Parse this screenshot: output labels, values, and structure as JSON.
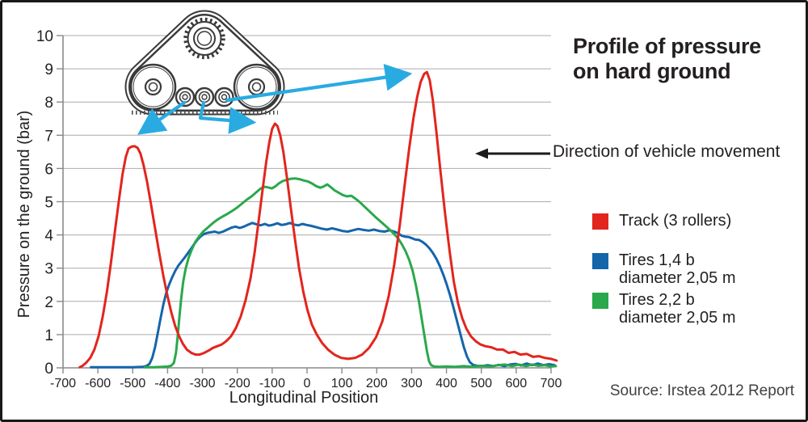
{
  "annotations": {
    "direction_note": "Direction of vehicle movement",
    "source": "Source: Irstea 2012 Report"
  },
  "colors": {
    "track_red": "#e2251d",
    "tires_blue": "#1565ab",
    "tires_green": "#2aa84c",
    "arrow_cyan": "#29abe2",
    "grid_gray": "#ababab",
    "axis_gray": "#8a8a8a",
    "text_dark": "#231f20"
  },
  "chart_data": {
    "type": "line",
    "title": "Profile of pressure\non hard ground",
    "xlabel": "Longitudinal Position",
    "ylabel": "Pressure on the ground (bar)",
    "xlim": [
      -700,
      700
    ],
    "ylim": [
      0,
      10
    ],
    "xticks": [
      -700,
      -600,
      -500,
      -400,
      -300,
      -200,
      -100,
      0,
      100,
      200,
      300,
      400,
      500,
      600,
      700
    ],
    "yticks": [
      0,
      1,
      2,
      3,
      4,
      5,
      6,
      7,
      8,
      9,
      10
    ],
    "grid": "horizontal",
    "legend_position": "right",
    "draw_order": [
      1,
      2,
      0
    ],
    "series": [
      {
        "name": "Track (3 rollers)",
        "label_lines": [
          "Track (3 rollers)"
        ],
        "color": "#e2251d",
        "points": [
          [
            -652,
            0.02
          ],
          [
            -644,
            0.06
          ],
          [
            -634,
            0.15
          ],
          [
            -622,
            0.3
          ],
          [
            -610,
            0.55
          ],
          [
            -598,
            0.95
          ],
          [
            -586,
            1.55
          ],
          [
            -574,
            2.3
          ],
          [
            -562,
            3.2
          ],
          [
            -550,
            4.2
          ],
          [
            -539,
            5.1
          ],
          [
            -529,
            5.85
          ],
          [
            -520,
            6.35
          ],
          [
            -512,
            6.6
          ],
          [
            -503,
            6.66
          ],
          [
            -494,
            6.67
          ],
          [
            -486,
            6.62
          ],
          [
            -478,
            6.45
          ],
          [
            -469,
            6.1
          ],
          [
            -459,
            5.6
          ],
          [
            -448,
            4.95
          ],
          [
            -436,
            4.2
          ],
          [
            -424,
            3.45
          ],
          [
            -412,
            2.75
          ],
          [
            -400,
            2.15
          ],
          [
            -389,
            1.65
          ],
          [
            -378,
            1.25
          ],
          [
            -367,
            0.95
          ],
          [
            -356,
            0.72
          ],
          [
            -345,
            0.55
          ],
          [
            -332,
            0.45
          ],
          [
            -320,
            0.4
          ],
          [
            -308,
            0.4
          ],
          [
            -295,
            0.45
          ],
          [
            -282,
            0.52
          ],
          [
            -270,
            0.6
          ],
          [
            -258,
            0.65
          ],
          [
            -245,
            0.7
          ],
          [
            -232,
            0.8
          ],
          [
            -218,
            0.95
          ],
          [
            -204,
            1.2
          ],
          [
            -190,
            1.55
          ],
          [
            -176,
            2.05
          ],
          [
            -162,
            2.7
          ],
          [
            -150,
            3.5
          ],
          [
            -138,
            4.5
          ],
          [
            -127,
            5.4
          ],
          [
            -117,
            6.2
          ],
          [
            -108,
            6.8
          ],
          [
            -100,
            7.2
          ],
          [
            -92,
            7.35
          ],
          [
            -85,
            7.28
          ],
          [
            -77,
            7.0
          ],
          [
            -68,
            6.5
          ],
          [
            -58,
            5.75
          ],
          [
            -47,
            4.85
          ],
          [
            -35,
            3.9
          ],
          [
            -23,
            3.0
          ],
          [
            -11,
            2.3
          ],
          [
            1,
            1.75
          ],
          [
            14,
            1.3
          ],
          [
            28,
            1.0
          ],
          [
            43,
            0.75
          ],
          [
            60,
            0.55
          ],
          [
            78,
            0.4
          ],
          [
            98,
            0.3
          ],
          [
            118,
            0.27
          ],
          [
            138,
            0.3
          ],
          [
            158,
            0.4
          ],
          [
            178,
            0.6
          ],
          [
            198,
            0.92
          ],
          [
            216,
            1.4
          ],
          [
            234,
            2.15
          ],
          [
            250,
            3.1
          ],
          [
            266,
            4.3
          ],
          [
            280,
            5.5
          ],
          [
            293,
            6.6
          ],
          [
            305,
            7.5
          ],
          [
            316,
            8.15
          ],
          [
            326,
            8.6
          ],
          [
            336,
            8.85
          ],
          [
            344,
            8.9
          ],
          [
            352,
            8.65
          ],
          [
            361,
            8.05
          ],
          [
            371,
            7.1
          ],
          [
            383,
            5.9
          ],
          [
            396,
            4.65
          ],
          [
            409,
            3.5
          ],
          [
            421,
            2.6
          ],
          [
            433,
            1.95
          ],
          [
            445,
            1.5
          ],
          [
            457,
            1.18
          ],
          [
            470,
            0.95
          ],
          [
            484,
            0.8
          ],
          [
            498,
            0.7
          ],
          [
            512,
            0.65
          ],
          [
            528,
            0.62
          ],
          [
            545,
            0.55
          ],
          [
            562,
            0.55
          ],
          [
            578,
            0.45
          ],
          [
            595,
            0.48
          ],
          [
            612,
            0.4
          ],
          [
            630,
            0.42
          ],
          [
            648,
            0.33
          ],
          [
            665,
            0.35
          ],
          [
            682,
            0.3
          ],
          [
            700,
            0.27
          ],
          [
            716,
            0.22
          ]
        ]
      },
      {
        "name": "Tires 1,4 b diameter 2,05 m",
        "label_lines": [
          "Tires 1,4 b",
          "diameter 2,05 m"
        ],
        "color": "#1565ab",
        "points": [
          [
            -620,
            0.02
          ],
          [
            -560,
            0.02
          ],
          [
            -500,
            0.02
          ],
          [
            -470,
            0.03
          ],
          [
            -460,
            0.06
          ],
          [
            -452,
            0.12
          ],
          [
            -444,
            0.3
          ],
          [
            -436,
            0.62
          ],
          [
            -428,
            1.05
          ],
          [
            -420,
            1.5
          ],
          [
            -412,
            1.92
          ],
          [
            -404,
            2.25
          ],
          [
            -396,
            2.5
          ],
          [
            -387,
            2.72
          ],
          [
            -378,
            2.92
          ],
          [
            -369,
            3.08
          ],
          [
            -360,
            3.2
          ],
          [
            -351,
            3.32
          ],
          [
            -342,
            3.45
          ],
          [
            -333,
            3.58
          ],
          [
            -324,
            3.72
          ],
          [
            -315,
            3.85
          ],
          [
            -306,
            3.95
          ],
          [
            -297,
            4.02
          ],
          [
            -287,
            4.06
          ],
          [
            -276,
            4.08
          ],
          [
            -265,
            4.1
          ],
          [
            -253,
            4.06
          ],
          [
            -241,
            4.1
          ],
          [
            -229,
            4.16
          ],
          [
            -217,
            4.22
          ],
          [
            -205,
            4.25
          ],
          [
            -193,
            4.21
          ],
          [
            -181,
            4.25
          ],
          [
            -169,
            4.31
          ],
          [
            -157,
            4.36
          ],
          [
            -145,
            4.32
          ],
          [
            -133,
            4.29
          ],
          [
            -121,
            4.33
          ],
          [
            -109,
            4.28
          ],
          [
            -97,
            4.31
          ],
          [
            -85,
            4.35
          ],
          [
            -73,
            4.3
          ],
          [
            -61,
            4.32
          ],
          [
            -49,
            4.36
          ],
          [
            -37,
            4.31
          ],
          [
            -25,
            4.29
          ],
          [
            -13,
            4.33
          ],
          [
            -1,
            4.3
          ],
          [
            13,
            4.27
          ],
          [
            27,
            4.23
          ],
          [
            42,
            4.19
          ],
          [
            57,
            4.16
          ],
          [
            72,
            4.2
          ],
          [
            87,
            4.16
          ],
          [
            102,
            4.12
          ],
          [
            117,
            4.1
          ],
          [
            132,
            4.14
          ],
          [
            147,
            4.18
          ],
          [
            162,
            4.15
          ],
          [
            177,
            4.13
          ],
          [
            192,
            4.16
          ],
          [
            207,
            4.12
          ],
          [
            222,
            4.1
          ],
          [
            237,
            4.14
          ],
          [
            250,
            4.1
          ],
          [
            261,
            4.05
          ],
          [
            271,
            3.98
          ],
          [
            281,
            3.95
          ],
          [
            291,
            3.94
          ],
          [
            301,
            3.9
          ],
          [
            311,
            3.86
          ],
          [
            321,
            3.85
          ],
          [
            331,
            3.79
          ],
          [
            341,
            3.71
          ],
          [
            351,
            3.6
          ],
          [
            361,
            3.46
          ],
          [
            371,
            3.28
          ],
          [
            381,
            3.06
          ],
          [
            391,
            2.8
          ],
          [
            401,
            2.5
          ],
          [
            411,
            2.16
          ],
          [
            421,
            1.78
          ],
          [
            431,
            1.38
          ],
          [
            441,
            0.97
          ],
          [
            450,
            0.62
          ],
          [
            459,
            0.34
          ],
          [
            467,
            0.17
          ],
          [
            476,
            0.09
          ],
          [
            488,
            0.06
          ],
          [
            502,
            0.05
          ],
          [
            518,
            0.08
          ],
          [
            534,
            0.05
          ],
          [
            550,
            0.09
          ],
          [
            566,
            0.05
          ],
          [
            582,
            0.1
          ],
          [
            598,
            0.12
          ],
          [
            614,
            0.07
          ],
          [
            630,
            0.13
          ],
          [
            646,
            0.08
          ],
          [
            662,
            0.13
          ],
          [
            678,
            0.08
          ],
          [
            695,
            0.11
          ],
          [
            710,
            0.08
          ]
        ]
      },
      {
        "name": "Tires 2,2 b diameter 2,05 m",
        "label_lines": [
          "Tires 2,2 b",
          "diameter 2,05 m"
        ],
        "color": "#2aa84c",
        "points": [
          [
            -465,
            0.02
          ],
          [
            -440,
            0.02
          ],
          [
            -415,
            0.03
          ],
          [
            -400,
            0.04
          ],
          [
            -390,
            0.06
          ],
          [
            -382,
            0.15
          ],
          [
            -376,
            0.45
          ],
          [
            -371,
            0.95
          ],
          [
            -366,
            1.55
          ],
          [
            -361,
            2.1
          ],
          [
            -355,
            2.6
          ],
          [
            -348,
            3.0
          ],
          [
            -340,
            3.3
          ],
          [
            -331,
            3.55
          ],
          [
            -321,
            3.78
          ],
          [
            -310,
            3.95
          ],
          [
            -298,
            4.1
          ],
          [
            -285,
            4.22
          ],
          [
            -271,
            4.35
          ],
          [
            -257,
            4.46
          ],
          [
            -243,
            4.55
          ],
          [
            -229,
            4.63
          ],
          [
            -215,
            4.72
          ],
          [
            -201,
            4.82
          ],
          [
            -187,
            4.94
          ],
          [
            -173,
            5.06
          ],
          [
            -159,
            5.16
          ],
          [
            -146,
            5.28
          ],
          [
            -134,
            5.39
          ],
          [
            -123,
            5.45
          ],
          [
            -112,
            5.43
          ],
          [
            -101,
            5.4
          ],
          [
            -91,
            5.46
          ],
          [
            -81,
            5.55
          ],
          [
            -70,
            5.62
          ],
          [
            -58,
            5.66
          ],
          [
            -46,
            5.69
          ],
          [
            -34,
            5.7
          ],
          [
            -22,
            5.68
          ],
          [
            -10,
            5.64
          ],
          [
            2,
            5.61
          ],
          [
            14,
            5.55
          ],
          [
            26,
            5.47
          ],
          [
            38,
            5.42
          ],
          [
            48,
            5.46
          ],
          [
            58,
            5.52
          ],
          [
            68,
            5.44
          ],
          [
            79,
            5.34
          ],
          [
            91,
            5.27
          ],
          [
            103,
            5.2
          ],
          [
            115,
            5.16
          ],
          [
            127,
            5.18
          ],
          [
            139,
            5.09
          ],
          [
            152,
            4.98
          ],
          [
            166,
            4.84
          ],
          [
            180,
            4.7
          ],
          [
            194,
            4.56
          ],
          [
            208,
            4.43
          ],
          [
            222,
            4.3
          ],
          [
            236,
            4.17
          ],
          [
            249,
            4.04
          ],
          [
            261,
            3.9
          ],
          [
            272,
            3.72
          ],
          [
            283,
            3.5
          ],
          [
            293,
            3.25
          ],
          [
            303,
            2.92
          ],
          [
            312,
            2.5
          ],
          [
            321,
            2.0
          ],
          [
            329,
            1.48
          ],
          [
            337,
            0.95
          ],
          [
            344,
            0.5
          ],
          [
            350,
            0.2
          ],
          [
            356,
            0.08
          ],
          [
            365,
            0.04
          ],
          [
            380,
            0.03
          ],
          [
            400,
            0.04
          ],
          [
            425,
            0.03
          ],
          [
            450,
            0.05
          ],
          [
            475,
            0.03
          ],
          [
            500,
            0.06
          ],
          [
            525,
            0.04
          ],
          [
            548,
            0.08
          ],
          [
            568,
            0.1
          ],
          [
            588,
            0.05
          ],
          [
            608,
            0.1
          ],
          [
            628,
            0.05
          ],
          [
            646,
            0.1
          ],
          [
            664,
            0.06
          ],
          [
            682,
            0.08
          ],
          [
            700,
            0.04
          ],
          [
            714,
            0.05
          ]
        ]
      }
    ]
  }
}
